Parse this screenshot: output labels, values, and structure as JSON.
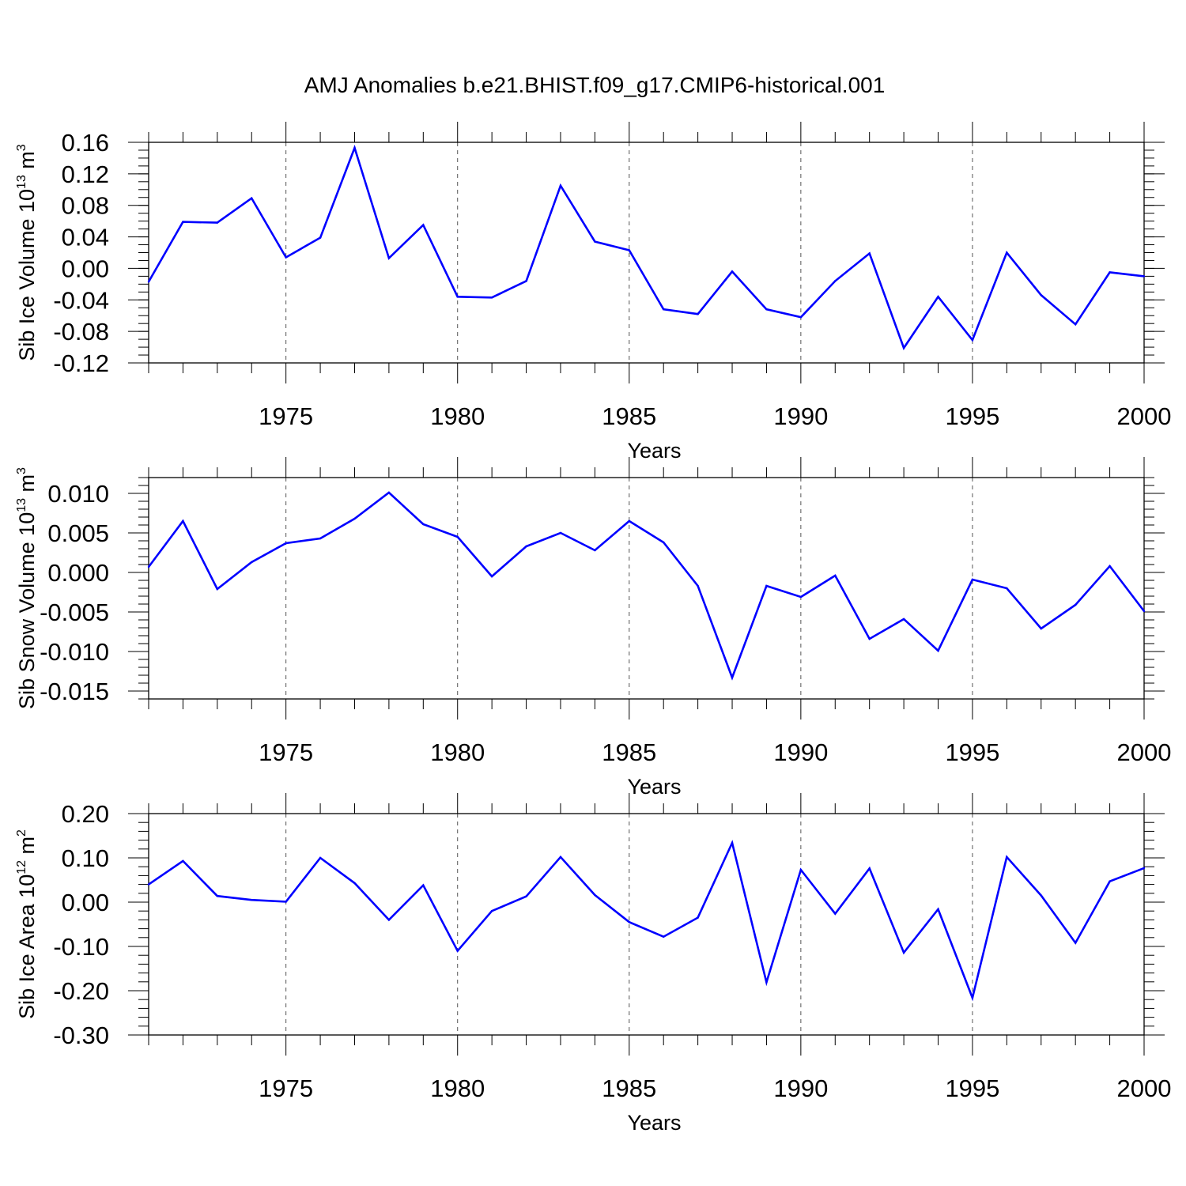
{
  "figure": {
    "title": "AMJ Anomalies b.e21.BHIST.f09_g17.CMIP6-historical.001"
  },
  "chart_data": [
    {
      "type": "line",
      "ylabel": {
        "main": "Sib Ice Volume 10",
        "exp": "13",
        "unit": " m",
        "unit_exp": "3"
      },
      "xlabel": "Years",
      "xlim": [
        1971,
        2000
      ],
      "ylim": [
        -0.12,
        0.16
      ],
      "x_ticks": [
        1975,
        1980,
        1985,
        1990,
        1995,
        2000
      ],
      "y_ticks": [
        -0.12,
        -0.08,
        -0.04,
        0.0,
        0.04,
        0.08,
        0.12,
        0.16
      ],
      "y_tick_labels": [
        "-0.12",
        "-0.08",
        "-0.04",
        "0.00",
        "0.04",
        "0.08",
        "0.12",
        "0.16"
      ],
      "y_minor_step": 0.01,
      "grid": "dashed vertical at major x ticks",
      "series": [
        {
          "color": "#0000ff",
          "x": [
            1971,
            1972,
            1973,
            1974,
            1975,
            1976,
            1977,
            1978,
            1979,
            1980,
            1981,
            1982,
            1983,
            1984,
            1985,
            1986,
            1987,
            1988,
            1989,
            1990,
            1991,
            1992,
            1993,
            1994,
            1995,
            1996,
            1997,
            1998,
            1999,
            2000
          ],
          "y": [
            -0.017,
            0.059,
            0.058,
            0.089,
            0.014,
            0.039,
            0.153,
            0.013,
            0.055,
            -0.036,
            -0.037,
            -0.016,
            0.105,
            0.034,
            0.023,
            -0.052,
            -0.058,
            -0.004,
            -0.052,
            -0.062,
            -0.016,
            0.019,
            -0.101,
            -0.036,
            -0.091,
            0.02,
            -0.034,
            -0.071,
            -0.005,
            -0.01
          ]
        }
      ]
    },
    {
      "type": "line",
      "ylabel": {
        "main": "Sib Snow Volume 10",
        "exp": "13",
        "unit": " m",
        "unit_exp": "3"
      },
      "xlabel": "Years",
      "xlim": [
        1971,
        2000
      ],
      "ylim": [
        -0.016,
        0.012
      ],
      "x_ticks": [
        1975,
        1980,
        1985,
        1990,
        1995,
        2000
      ],
      "y_ticks": [
        -0.015,
        -0.01,
        -0.005,
        0.0,
        0.005,
        0.01
      ],
      "y_tick_labels": [
        "-0.015",
        "-0.010",
        "-0.005",
        "0.000",
        "0.005",
        "0.010"
      ],
      "y_minor_step": 0.001,
      "grid": "dashed vertical at major x ticks",
      "series": [
        {
          "color": "#0000ff",
          "x": [
            1971,
            1972,
            1973,
            1974,
            1975,
            1976,
            1977,
            1978,
            1979,
            1980,
            1981,
            1982,
            1983,
            1984,
            1985,
            1986,
            1987,
            1988,
            1989,
            1990,
            1991,
            1992,
            1993,
            1994,
            1995,
            1996,
            1997,
            1998,
            1999,
            2000
          ],
          "y": [
            0.0007,
            0.0065,
            -0.0021,
            0.0013,
            0.0037,
            0.0043,
            0.0068,
            0.0101,
            0.0061,
            0.0045,
            -0.0005,
            0.0033,
            0.005,
            0.0028,
            0.0065,
            0.0038,
            -0.0017,
            -0.0133,
            -0.0017,
            -0.0031,
            -0.0004,
            -0.0084,
            -0.0059,
            -0.0099,
            -0.0009,
            -0.002,
            -0.0071,
            -0.0041,
            0.0008,
            -0.0049
          ]
        }
      ]
    },
    {
      "type": "line",
      "ylabel": {
        "main": "Sib Ice Area 10",
        "exp": "12",
        "unit": " m",
        "unit_exp": "2"
      },
      "xlabel": "Years",
      "xlim": [
        1971,
        2000
      ],
      "ylim": [
        -0.3,
        0.2
      ],
      "x_ticks": [
        1975,
        1980,
        1985,
        1990,
        1995,
        2000
      ],
      "y_ticks": [
        -0.3,
        -0.2,
        -0.1,
        0.0,
        0.1,
        0.2
      ],
      "y_tick_labels": [
        "-0.30",
        "-0.20",
        "-0.10",
        "0.00",
        "0.10",
        "0.20"
      ],
      "y_minor_step": 0.02,
      "grid": "dashed vertical at major x ticks",
      "series": [
        {
          "color": "#0000ff",
          "x": [
            1971,
            1972,
            1973,
            1974,
            1975,
            1976,
            1977,
            1978,
            1979,
            1980,
            1981,
            1982,
            1983,
            1984,
            1985,
            1986,
            1987,
            1988,
            1989,
            1990,
            1991,
            1992,
            1993,
            1994,
            1995,
            1996,
            1997,
            1998,
            1999,
            2000
          ],
          "y": [
            0.04,
            0.093,
            0.014,
            0.005,
            0.001,
            0.1,
            0.043,
            -0.04,
            0.038,
            -0.11,
            -0.02,
            0.013,
            0.102,
            0.016,
            -0.045,
            -0.078,
            -0.035,
            0.134,
            -0.181,
            0.073,
            -0.026,
            0.076,
            -0.114,
            -0.016,
            -0.216,
            0.102,
            0.015,
            -0.092,
            0.047,
            0.077
          ]
        }
      ]
    }
  ]
}
